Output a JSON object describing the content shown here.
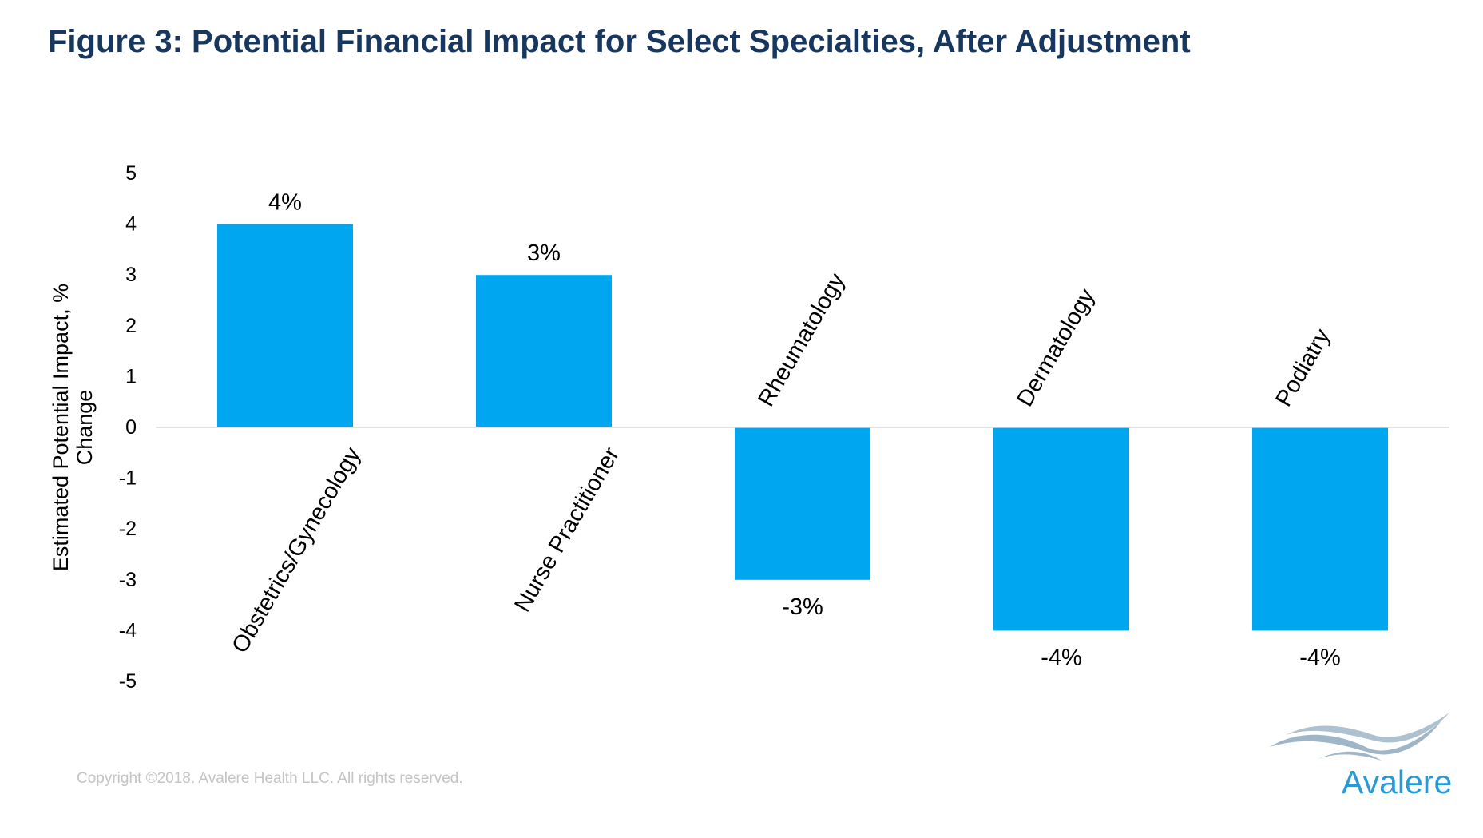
{
  "chart_data": {
    "type": "bar",
    "title": "Figure 3: Potential Financial Impact for Select Specialties, After Adjustment",
    "categories": [
      "Obstetrics/Gynecology",
      "Nurse Practitioner",
      "Rheumatology",
      "Dermatology",
      "Podiatry"
    ],
    "values": [
      4,
      3,
      -3,
      -4,
      -4
    ],
    "data_labels": [
      "4%",
      "3%",
      "-3%",
      "-4%",
      "-4%"
    ],
    "ylabel_lines": [
      "Estimated Potential Impact, %",
      "Change"
    ],
    "xlabel": "",
    "ylim": [
      -5,
      5
    ],
    "yticks": [
      5,
      4,
      3,
      2,
      1,
      0,
      -1,
      -2,
      -3,
      -4,
      -5
    ],
    "bar_color": "#00a6f0",
    "grid": false
  },
  "footer": {
    "copyright": "Copyright ©2018. Avalere Health LLC. All rights reserved."
  },
  "logo": {
    "text": "Avalere",
    "color": "#2a9ad6",
    "wave_color": "#9fb6c9"
  }
}
